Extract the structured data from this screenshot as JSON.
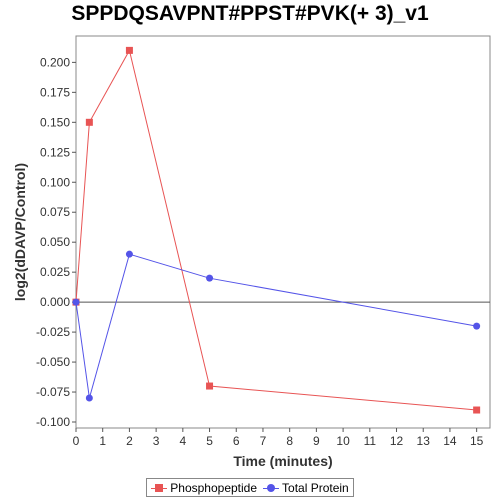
{
  "chart_data": {
    "type": "line",
    "title": "SPPDQSAVPNT#PPST#PVK(+ 3)_v1",
    "xlabel": "Time (minutes)",
    "ylabel": "log2(dDAVP/Control)",
    "xlim": [
      0,
      15.5
    ],
    "ylim": [
      -0.105,
      0.222
    ],
    "x_ticks": [
      "0",
      "1",
      "2",
      "3",
      "4",
      "5",
      "6",
      "7",
      "8",
      "9",
      "10",
      "11",
      "12",
      "13",
      "14",
      "15"
    ],
    "y_ticks": [
      "0.200",
      "0.175",
      "0.150",
      "0.125",
      "0.100",
      "0.075",
      "0.050",
      "0.025",
      "0.000",
      "-0.025",
      "-0.050",
      "-0.075",
      "-0.100"
    ],
    "series": [
      {
        "name": "Phosphopeptide",
        "color": "#e85454",
        "marker": "square",
        "x": [
          0,
          0.5,
          2,
          5,
          15
        ],
        "y": [
          0.0,
          0.15,
          0.21,
          -0.07,
          -0.09
        ]
      },
      {
        "name": "Total Protein",
        "color": "#5454e8",
        "marker": "circle",
        "x": [
          0,
          0.5,
          2,
          5,
          15
        ],
        "y": [
          0.0,
          -0.08,
          0.04,
          0.02,
          -0.02
        ]
      }
    ],
    "grid": false,
    "legend_position": "bottom-center"
  }
}
